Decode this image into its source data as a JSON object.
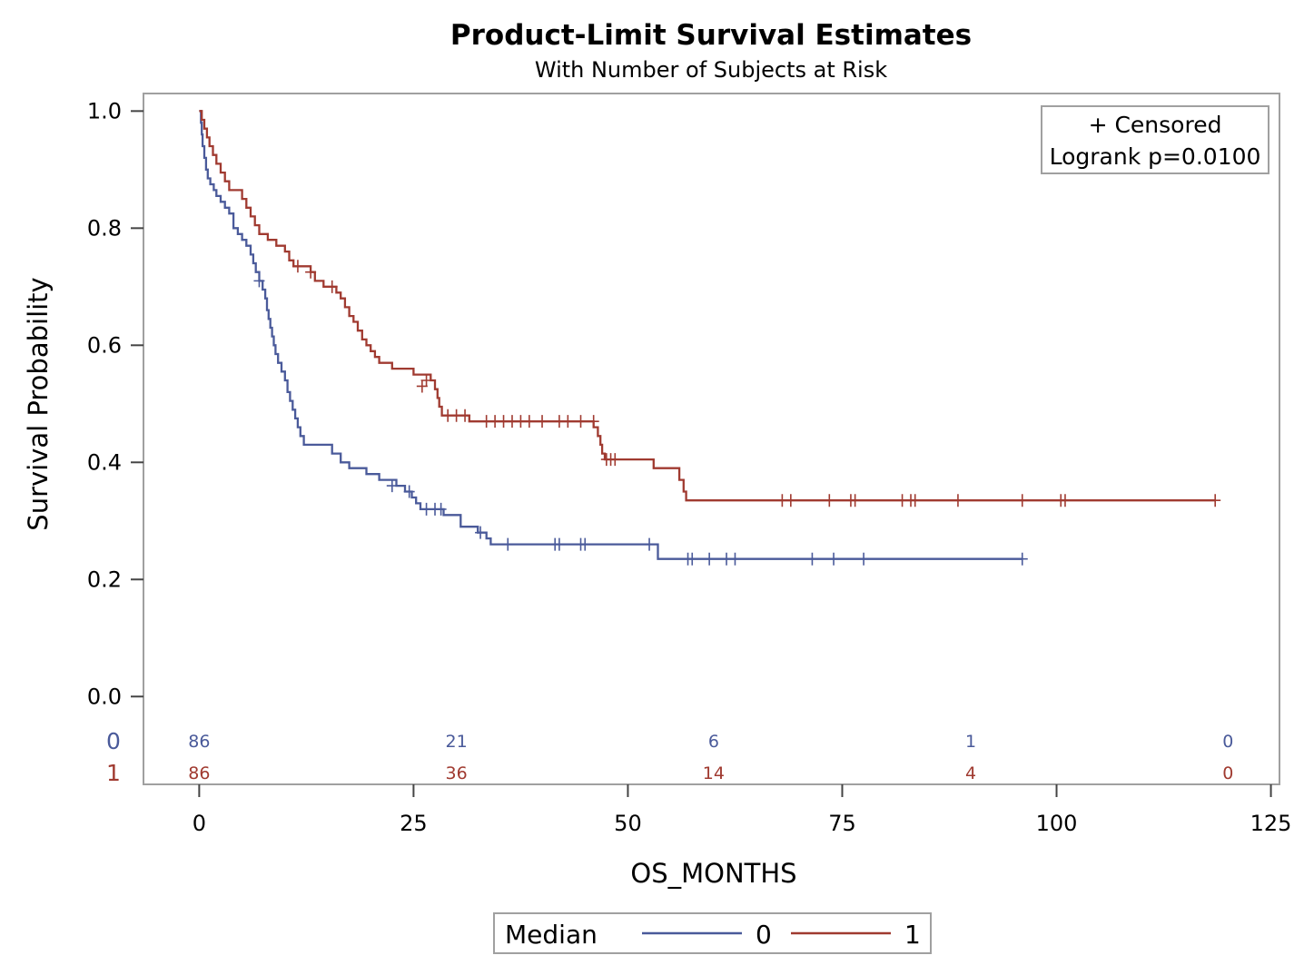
{
  "chart_data": {
    "type": "line",
    "title": "Product-Limit Survival Estimates",
    "subtitle": "With Number of Subjects at Risk",
    "xlabel": "OS_MONTHS",
    "ylabel": "Survival Probability",
    "xlim": [
      -6.5,
      126
    ],
    "ylim": [
      -0.15,
      1.03
    ],
    "x_ticks": [
      0,
      25,
      50,
      75,
      100,
      125
    ],
    "x_tick_labels": [
      "0",
      "25",
      "50",
      "75",
      "100",
      "125"
    ],
    "y_ticks": [
      0.0,
      0.2,
      0.4,
      0.6,
      0.8,
      1.0
    ],
    "y_tick_labels": [
      "0.0",
      "0.2",
      "0.4",
      "0.6",
      "0.8",
      "1.0"
    ],
    "grid": false,
    "inset": {
      "censored_label": "+ Censored",
      "logrank_label": "Logrank p=0.0100",
      "position": "top-right"
    },
    "legend": {
      "title": "Median",
      "position": "bottom",
      "entries": [
        "0",
        "1"
      ]
    },
    "risk_table": {
      "times": [
        0,
        30,
        60,
        90,
        120
      ],
      "rows": [
        {
          "group": "0",
          "color": "#4a5a9a",
          "counts": [
            "86",
            "21",
            "6",
            "1",
            "0"
          ]
        },
        {
          "group": "1",
          "color": "#a03a30",
          "counts": [
            "86",
            "36",
            "14",
            "4",
            "0"
          ]
        }
      ]
    },
    "series": [
      {
        "name": "0",
        "color": "#4a5a9a",
        "steps": [
          [
            0,
            1.0
          ],
          [
            0.2,
            0.98
          ],
          [
            0.3,
            0.96
          ],
          [
            0.4,
            0.94
          ],
          [
            0.6,
            0.92
          ],
          [
            0.8,
            0.9
          ],
          [
            1.0,
            0.885
          ],
          [
            1.3,
            0.875
          ],
          [
            1.7,
            0.865
          ],
          [
            2.0,
            0.855
          ],
          [
            2.5,
            0.845
          ],
          [
            3.0,
            0.835
          ],
          [
            3.5,
            0.825
          ],
          [
            4.0,
            0.8
          ],
          [
            4.5,
            0.79
          ],
          [
            5.0,
            0.78
          ],
          [
            5.5,
            0.77
          ],
          [
            6.0,
            0.755
          ],
          [
            6.3,
            0.74
          ],
          [
            6.6,
            0.725
          ],
          [
            7.0,
            0.71
          ],
          [
            7.4,
            0.695
          ],
          [
            7.7,
            0.68
          ],
          [
            7.9,
            0.66
          ],
          [
            8.1,
            0.645
          ],
          [
            8.3,
            0.63
          ],
          [
            8.5,
            0.615
          ],
          [
            8.7,
            0.6
          ],
          [
            8.9,
            0.585
          ],
          [
            9.2,
            0.57
          ],
          [
            9.6,
            0.555
          ],
          [
            10.0,
            0.54
          ],
          [
            10.3,
            0.52
          ],
          [
            10.6,
            0.505
          ],
          [
            10.9,
            0.49
          ],
          [
            11.2,
            0.475
          ],
          [
            11.5,
            0.46
          ],
          [
            11.8,
            0.445
          ],
          [
            12.2,
            0.43
          ],
          [
            13.5,
            0.43
          ],
          [
            15.5,
            0.415
          ],
          [
            16.5,
            0.4
          ],
          [
            17.5,
            0.39
          ],
          [
            19.5,
            0.38
          ],
          [
            21.0,
            0.37
          ],
          [
            23.0,
            0.36
          ],
          [
            24.0,
            0.35
          ],
          [
            24.8,
            0.34
          ],
          [
            25.3,
            0.33
          ],
          [
            25.8,
            0.32
          ],
          [
            28.5,
            0.31
          ],
          [
            30.5,
            0.29
          ],
          [
            32.5,
            0.28
          ],
          [
            33.5,
            0.27
          ],
          [
            34.0,
            0.26
          ],
          [
            53.5,
            0.235
          ],
          [
            96,
            0.235
          ]
        ],
        "censored": [
          [
            7.0,
            0.71
          ],
          [
            22.5,
            0.36
          ],
          [
            24.5,
            0.35
          ],
          [
            26.5,
            0.32
          ],
          [
            27.5,
            0.32
          ],
          [
            28.2,
            0.32
          ],
          [
            32.8,
            0.28
          ],
          [
            36.0,
            0.26
          ],
          [
            41.5,
            0.26
          ],
          [
            42.0,
            0.26
          ],
          [
            44.5,
            0.26
          ],
          [
            45.0,
            0.26
          ],
          [
            52.5,
            0.26
          ],
          [
            57.0,
            0.235
          ],
          [
            57.5,
            0.235
          ],
          [
            59.5,
            0.235
          ],
          [
            61.5,
            0.235
          ],
          [
            62.5,
            0.235
          ],
          [
            71.5,
            0.235
          ],
          [
            74.0,
            0.235
          ],
          [
            77.5,
            0.235
          ],
          [
            96.0,
            0.235
          ]
        ]
      },
      {
        "name": "1",
        "color": "#a03a30",
        "steps": [
          [
            0,
            1.0
          ],
          [
            0.3,
            0.985
          ],
          [
            0.6,
            0.97
          ],
          [
            0.9,
            0.955
          ],
          [
            1.2,
            0.94
          ],
          [
            1.6,
            0.925
          ],
          [
            2.0,
            0.91
          ],
          [
            2.5,
            0.895
          ],
          [
            3.0,
            0.88
          ],
          [
            3.5,
            0.865
          ],
          [
            5.0,
            0.85
          ],
          [
            5.5,
            0.835
          ],
          [
            6.0,
            0.82
          ],
          [
            6.5,
            0.805
          ],
          [
            7.0,
            0.79
          ],
          [
            8.0,
            0.78
          ],
          [
            9.0,
            0.77
          ],
          [
            10.0,
            0.76
          ],
          [
            10.5,
            0.745
          ],
          [
            11.0,
            0.735
          ],
          [
            13.0,
            0.725
          ],
          [
            13.5,
            0.71
          ],
          [
            14.5,
            0.7
          ],
          [
            16.0,
            0.69
          ],
          [
            16.5,
            0.68
          ],
          [
            17.0,
            0.665
          ],
          [
            17.5,
            0.65
          ],
          [
            18.0,
            0.64
          ],
          [
            18.5,
            0.625
          ],
          [
            19.0,
            0.61
          ],
          [
            19.5,
            0.6
          ],
          [
            20.0,
            0.59
          ],
          [
            20.5,
            0.58
          ],
          [
            21.0,
            0.57
          ],
          [
            22.5,
            0.56
          ],
          [
            25.0,
            0.55
          ],
          [
            27.0,
            0.54
          ],
          [
            27.5,
            0.525
          ],
          [
            27.8,
            0.51
          ],
          [
            28.0,
            0.495
          ],
          [
            28.3,
            0.48
          ],
          [
            31.5,
            0.47
          ],
          [
            46.0,
            0.46
          ],
          [
            46.5,
            0.445
          ],
          [
            46.8,
            0.43
          ],
          [
            47.0,
            0.415
          ],
          [
            47.3,
            0.405
          ],
          [
            53.0,
            0.39
          ],
          [
            56.0,
            0.37
          ],
          [
            56.5,
            0.35
          ],
          [
            56.8,
            0.335
          ],
          [
            118.5,
            0.335
          ]
        ],
        "censored": [
          [
            11.5,
            0.735
          ],
          [
            13.0,
            0.725
          ],
          [
            15.5,
            0.7
          ],
          [
            26.0,
            0.53
          ],
          [
            26.5,
            0.54
          ],
          [
            29.0,
            0.48
          ],
          [
            30.0,
            0.48
          ],
          [
            31.0,
            0.48
          ],
          [
            33.5,
            0.47
          ],
          [
            34.5,
            0.47
          ],
          [
            35.5,
            0.47
          ],
          [
            36.5,
            0.47
          ],
          [
            37.5,
            0.47
          ],
          [
            38.5,
            0.47
          ],
          [
            40.0,
            0.47
          ],
          [
            42.0,
            0.47
          ],
          [
            43.0,
            0.47
          ],
          [
            44.5,
            0.47
          ],
          [
            46.0,
            0.47
          ],
          [
            47.5,
            0.405
          ],
          [
            48.0,
            0.405
          ],
          [
            48.5,
            0.405
          ],
          [
            68.0,
            0.335
          ],
          [
            69.0,
            0.335
          ],
          [
            73.5,
            0.335
          ],
          [
            76.0,
            0.335
          ],
          [
            76.5,
            0.335
          ],
          [
            82.0,
            0.335
          ],
          [
            83.0,
            0.335
          ],
          [
            83.5,
            0.335
          ],
          [
            88.5,
            0.335
          ],
          [
            96.0,
            0.335
          ],
          [
            100.5,
            0.335
          ],
          [
            101.0,
            0.335
          ],
          [
            118.5,
            0.335
          ]
        ]
      }
    ]
  }
}
